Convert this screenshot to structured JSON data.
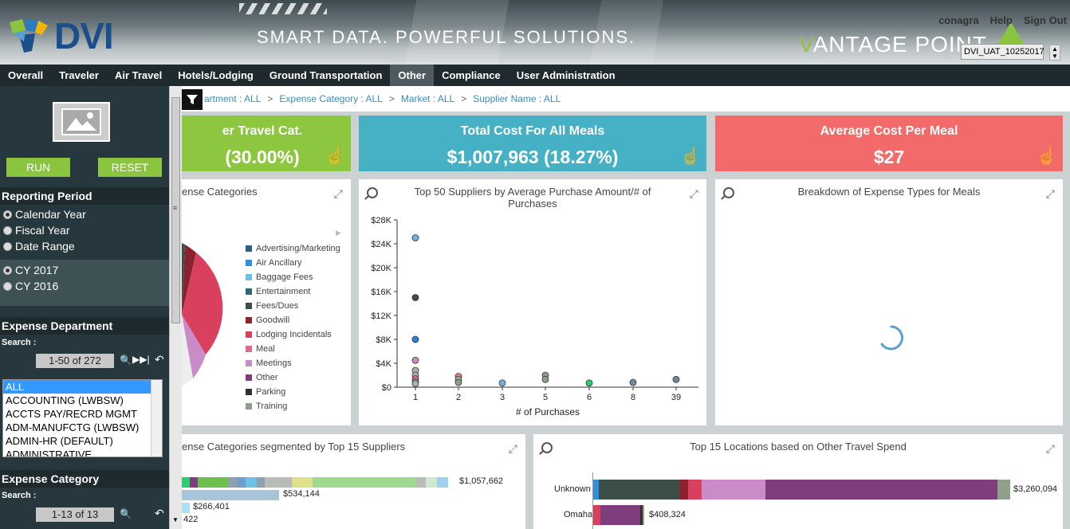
{
  "header": {
    "logo_text": "DVI",
    "tagline": "SMART DATA. POWERFUL SOLUTIONS.",
    "product_v": "V",
    "product_rest": "ANTAGE POINT",
    "links": [
      "conagra",
      "Help",
      "Sign Out"
    ],
    "environment": "DVI_UAT_10252017"
  },
  "nav": [
    "Overall",
    "Traveler",
    "Air Travel",
    "Hotels/Lodging",
    "Ground Transportation",
    "Other",
    "Compliance",
    "User Administration"
  ],
  "nav_active": "Other",
  "sidebar": {
    "run_label": "RUN",
    "reset_label": "RESET",
    "reporting_period_title": "Reporting Period",
    "period_options": [
      "Calendar Year",
      "Fiscal Year",
      "Date Range"
    ],
    "period_selected": "Calendar Year",
    "year_options": [
      "CY 2017",
      "CY 2016"
    ],
    "year_selected": "CY 2017",
    "expense_department_title": "Expense Department",
    "search_label": "Search :",
    "dept_pager": "1-50 of 272",
    "dept_list": [
      "ALL",
      "ACCOUNTING (LWBSW)",
      "ACCTS PAY/RECRD MGMT",
      "ADM-MANUFCTG (LWBSW)",
      "ADMIN-HR (DEFAULT)",
      "ADMINISTRATIVE"
    ],
    "dept_selected": "ALL",
    "expense_category_title": "Expense Category",
    "cat_search_label": "Search :",
    "cat_pager": "1-13 of 13"
  },
  "breadcrumb": [
    "artment : ALL",
    "Expense Category : ALL",
    "Market : ALL",
    "Supplier Name : ALL"
  ],
  "kpis": [
    {
      "title": "er Travel Cat.",
      "value": "(30.00%)",
      "color": "#8dc63f"
    },
    {
      "title": "Total Cost For All Meals",
      "value": "$1,007,963 (18.27%)",
      "color": "#46b1c4"
    },
    {
      "title": "Average Cost Per Meal",
      "value": "$27",
      "color": "#f26a6a"
    }
  ],
  "panels": {
    "expense_categories_title": "ense Categories",
    "scatter_title_1": "Top 50 Suppliers by Average Purchase Amount/# of",
    "scatter_title_2": "Purchases",
    "breakdown_title": "Breakdown of Expense Types for Meals",
    "segmented_title": "ense Categories segmented by Top 15 Suppliers",
    "locations_title": "Top 15 Locations based on Other Travel Spend"
  },
  "legend": [
    {
      "name": "Advertising/Marketing",
      "color": "#2e5e86"
    },
    {
      "name": "Air Ancillary",
      "color": "#2f8fd8"
    },
    {
      "name": "Baggage Fees",
      "color": "#6cc0ea"
    },
    {
      "name": "Entertainment",
      "color": "#2a6a7a"
    },
    {
      "name": "Fees/Dues",
      "color": "#3b4f48"
    },
    {
      "name": "Goodwill",
      "color": "#8b2230"
    },
    {
      "name": "Lodging Incidentals",
      "color": "#d9405e"
    },
    {
      "name": "Meal",
      "color": "#d96a94"
    },
    {
      "name": "Meetings",
      "color": "#c98cc8"
    },
    {
      "name": "Other",
      "color": "#7e3e7e"
    },
    {
      "name": "Parking",
      "color": "#2f2f2f"
    },
    {
      "name": "Training",
      "color": "#8fa08a"
    }
  ],
  "chart_data": [
    {
      "type": "scatter",
      "title": "Top 50 Suppliers by Average Purchase Amount/# of Purchases",
      "xlabel": "# of Purchases",
      "ylabel": "",
      "x_categories": [
        "1",
        "2",
        "3",
        "5",
        "6",
        "8",
        "39"
      ],
      "y_ticks": [
        "$0",
        "$4K",
        "$8K",
        "$12K",
        "$16K",
        "$20K",
        "$24K",
        "$28K"
      ],
      "ylim": [
        0,
        28000
      ],
      "points": [
        {
          "x": "1",
          "y": 25000,
          "color": "#6cb3e0"
        },
        {
          "x": "1",
          "y": 15000,
          "color": "#3b4f48"
        },
        {
          "x": "1",
          "y": 8000,
          "color": "#2f7fd8"
        },
        {
          "x": "1",
          "y": 4500,
          "color": "#c98cc8"
        },
        {
          "x": "1",
          "y": 2800,
          "color": "#a5b59e"
        },
        {
          "x": "1",
          "y": 2000,
          "color": "#a5b59e"
        },
        {
          "x": "1",
          "y": 1400,
          "color": "#d96a94"
        },
        {
          "x": "1",
          "y": 900,
          "color": "#8fa08a"
        },
        {
          "x": "1",
          "y": 600,
          "color": "#a5b59e"
        },
        {
          "x": "2",
          "y": 1800,
          "color": "#f08080"
        },
        {
          "x": "2",
          "y": 1300,
          "color": "#a5b59e"
        },
        {
          "x": "2",
          "y": 800,
          "color": "#8fa08a"
        },
        {
          "x": "3",
          "y": 700,
          "color": "#6cb3e0"
        },
        {
          "x": "5",
          "y": 2000,
          "color": "#8fa08a"
        },
        {
          "x": "5",
          "y": 1300,
          "color": "#8fa08a"
        },
        {
          "x": "6",
          "y": 700,
          "color": "#2ecc71"
        },
        {
          "x": "8",
          "y": 800,
          "color": "#6c8ba0"
        },
        {
          "x": "39",
          "y": 1300,
          "color": "#6c8ba0"
        }
      ]
    },
    {
      "type": "bar",
      "title": "ense Categories segmented by Top 15 Suppliers",
      "bars": [
        "$1,057,662",
        "$534,144",
        "$266,401",
        "422"
      ]
    },
    {
      "type": "bar",
      "title": "Top 15 Locations based on Other Travel Spend",
      "categories": [
        "Unknown",
        "Omaha"
      ],
      "values": [
        3260094,
        408324
      ],
      "value_labels": [
        "$3,260,094",
        "$408,324"
      ]
    }
  ]
}
